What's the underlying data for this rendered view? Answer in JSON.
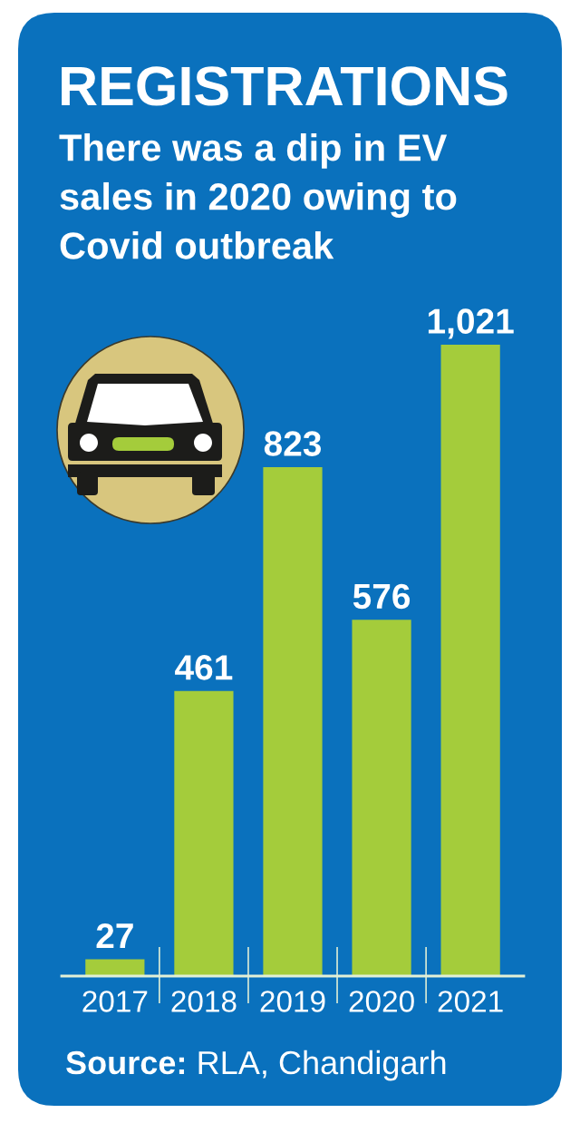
{
  "chart_data": {
    "type": "bar",
    "title": "REGISTRATIONS",
    "subtitle": "There was a dip in EV\nsales in 2020 owing to\nCovid outbreak",
    "categories": [
      "2017",
      "2018",
      "2019",
      "2020",
      "2021"
    ],
    "values": [
      27,
      461,
      823,
      576,
      1021
    ],
    "value_labels": [
      "27",
      "461",
      "823",
      "576",
      "1,021"
    ],
    "color": "#a4cc3b",
    "tick_labels": "x",
    "annotations": [
      "Source: RLA, Chandigarh"
    ]
  }
}
